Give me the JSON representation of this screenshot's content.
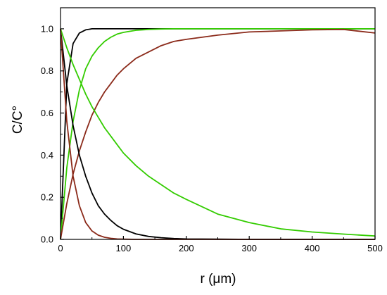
{
  "chart_data": {
    "type": "line",
    "title": "",
    "xlabel": "r (μm)",
    "ylabel": "C/C°",
    "xlim": [
      0,
      500
    ],
    "ylim": [
      0,
      1.1
    ],
    "x_ticks": [
      0,
      100,
      200,
      300,
      400,
      500
    ],
    "y_ticks": [
      0.0,
      0.2,
      0.4,
      0.6,
      0.8,
      1.0
    ],
    "x_tick_labels": [
      "0",
      "100",
      "200",
      "300",
      "400",
      "500"
    ],
    "y_tick_labels": [
      "0.0",
      "0.2",
      "0.4",
      "0.6",
      "0.8",
      "1.0"
    ],
    "grid": false,
    "legend": "none",
    "x": [
      0,
      10,
      20,
      30,
      40,
      50,
      60,
      70,
      80,
      90,
      100,
      120,
      140,
      160,
      180,
      200,
      250,
      300,
      350,
      400,
      450,
      500
    ],
    "series": [
      {
        "color": "#000000",
        "values": [
          0.0,
          0.74,
          0.93,
          0.98,
          0.995,
          1.0,
          1.0,
          1.0,
          1.0,
          1.0,
          1.0,
          1.0,
          1.0,
          1.0,
          1.0,
          1.0,
          1.0,
          1.0,
          1.0,
          1.0,
          1.0,
          1.0
        ]
      },
      {
        "color": "#33cc00",
        "values": [
          0.0,
          0.34,
          0.56,
          0.71,
          0.81,
          0.87,
          0.91,
          0.94,
          0.96,
          0.975,
          0.983,
          0.993,
          0.997,
          0.999,
          1.0,
          1.0,
          1.0,
          1.0,
          1.0,
          1.0,
          1.0,
          1.0
        ]
      },
      {
        "color": "#8b2a1a",
        "values": [
          0.0,
          0.17,
          0.31,
          0.42,
          0.51,
          0.59,
          0.65,
          0.7,
          0.74,
          0.78,
          0.81,
          0.86,
          0.89,
          0.92,
          0.94,
          0.95,
          0.97,
          0.985,
          0.99,
          0.995,
          0.997,
          0.98
        ]
      },
      {
        "color": "#000000",
        "values": [
          1.0,
          0.73,
          0.54,
          0.4,
          0.3,
          0.22,
          0.16,
          0.12,
          0.09,
          0.065,
          0.048,
          0.026,
          0.014,
          0.008,
          0.004,
          0.002,
          0.001,
          0.0,
          0.0,
          0.0,
          0.0,
          0.0
        ]
      },
      {
        "color": "#33cc00",
        "values": [
          1.0,
          0.91,
          0.83,
          0.76,
          0.69,
          0.63,
          0.58,
          0.53,
          0.49,
          0.45,
          0.41,
          0.35,
          0.3,
          0.26,
          0.22,
          0.19,
          0.12,
          0.08,
          0.05,
          0.035,
          0.025,
          0.016
        ]
      },
      {
        "color": "#8b2a1a",
        "values": [
          1.0,
          0.56,
          0.3,
          0.16,
          0.08,
          0.04,
          0.02,
          0.01,
          0.005,
          0.002,
          0.001,
          0.0,
          0.0,
          0.0,
          0.0,
          0.0,
          0.0,
          0.0,
          0.0,
          0.0,
          0.0,
          0.0
        ]
      }
    ]
  }
}
